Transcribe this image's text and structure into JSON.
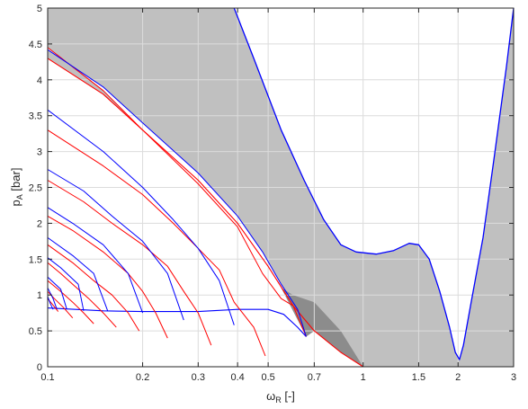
{
  "chart_data": {
    "type": "area",
    "xlabel": {
      "main": "ω",
      "sub": "R",
      "rest": " [-]"
    },
    "ylabel": {
      "main": "p",
      "sub": "A",
      "rest": " [bar]"
    },
    "x_scale": "log",
    "xlim": [
      0.1,
      3
    ],
    "ylim": [
      0,
      5
    ],
    "x_ticks": [
      {
        "value": 0.1,
        "label": "0.1"
      },
      {
        "value": 0.2,
        "label": "0.2"
      },
      {
        "value": 0.3,
        "label": "0.3"
      },
      {
        "value": 0.4,
        "label": "0.4"
      },
      {
        "value": 0.5,
        "label": "0.5"
      },
      {
        "value": 0.7,
        "label": "0.7"
      },
      {
        "value": 1,
        "label": "1"
      },
      {
        "value": 1.5,
        "label": "1.5"
      },
      {
        "value": 2,
        "label": "2"
      },
      {
        "value": 3,
        "label": "3"
      }
    ],
    "y_ticks": [
      {
        "value": 0,
        "label": "0"
      },
      {
        "value": 0.5,
        "label": "0.5"
      },
      {
        "value": 1,
        "label": "1"
      },
      {
        "value": 1.5,
        "label": "1.5"
      },
      {
        "value": 2,
        "label": "2"
      },
      {
        "value": 2.5,
        "label": "2.5"
      },
      {
        "value": 3,
        "label": "3"
      },
      {
        "value": 3.5,
        "label": "3.5"
      },
      {
        "value": 4,
        "label": "4"
      },
      {
        "value": 4.5,
        "label": "4.5"
      },
      {
        "value": 5,
        "label": "5"
      }
    ],
    "grid": true,
    "colors": {
      "region_light": "#c0c0c0",
      "region_dark": "#8c8c8c",
      "blue_boundary": "#0000ff",
      "red_boundary": "#ff0000",
      "grid": "#dcdcdc",
      "axis": "#262626"
    },
    "outer_boundary": [
      [
        0.1,
        5.0
      ],
      [
        0.2,
        5.0
      ],
      [
        0.3,
        5.0
      ],
      [
        0.4,
        5.0
      ],
      [
        0.5,
        5.0
      ],
      [
        0.7,
        5.0
      ],
      [
        1.0,
        5.0
      ],
      [
        1.5,
        5.0
      ],
      [
        2.0,
        5.0
      ],
      [
        2.5,
        5.0
      ],
      [
        3.0,
        5.0
      ]
    ],
    "blue_upper": [
      [
        0.39,
        5.0
      ],
      [
        0.45,
        4.3
      ],
      [
        0.55,
        3.3
      ],
      [
        0.65,
        2.6
      ],
      [
        0.75,
        2.05
      ],
      [
        0.85,
        1.7
      ],
      [
        0.95,
        1.6
      ],
      [
        1.1,
        1.57
      ],
      [
        1.25,
        1.62
      ],
      [
        1.4,
        1.72
      ],
      [
        1.5,
        1.7
      ],
      [
        1.62,
        1.5
      ],
      [
        1.75,
        1.05
      ],
      [
        1.88,
        0.55
      ],
      [
        1.96,
        0.2
      ],
      [
        2.02,
        0.1
      ],
      [
        2.08,
        0.3
      ],
      [
        2.2,
        0.9
      ],
      [
        2.4,
        1.8
      ],
      [
        2.6,
        2.9
      ],
      [
        2.85,
        4.2
      ],
      [
        3.0,
        5.0
      ]
    ],
    "blue_baseline": [
      [
        0.1,
        0.82
      ],
      [
        0.15,
        0.78
      ],
      [
        0.2,
        0.77
      ],
      [
        0.3,
        0.77
      ],
      [
        0.4,
        0.8
      ],
      [
        0.5,
        0.8
      ],
      [
        0.56,
        0.73
      ],
      [
        0.62,
        0.55
      ],
      [
        0.66,
        0.42
      ]
    ],
    "red_lower": [
      [
        0.1,
        4.3
      ],
      [
        0.15,
        3.8
      ],
      [
        0.2,
        3.3
      ],
      [
        0.3,
        2.6
      ],
      [
        0.4,
        2.0
      ],
      [
        0.5,
        1.4
      ],
      [
        0.6,
        0.85
      ],
      [
        0.7,
        0.5
      ],
      [
        0.85,
        0.2
      ],
      [
        1.0,
        0.0
      ]
    ],
    "fan_tongues": [
      {
        "red": [
          [
            0.1,
            4.45
          ],
          [
            0.15,
            3.85
          ],
          [
            0.2,
            3.3
          ],
          [
            0.3,
            2.55
          ],
          [
            0.4,
            1.95
          ],
          [
            0.48,
            1.3
          ],
          [
            0.55,
            0.95
          ],
          [
            0.6,
            0.85
          ],
          [
            0.66,
            0.42
          ]
        ],
        "blue": [
          [
            0.1,
            4.42
          ],
          [
            0.15,
            3.9
          ],
          [
            0.2,
            3.4
          ],
          [
            0.3,
            2.7
          ],
          [
            0.4,
            2.1
          ],
          [
            0.48,
            1.6
          ],
          [
            0.55,
            1.15
          ],
          [
            0.62,
            0.8
          ],
          [
            0.66,
            0.42
          ]
        ],
        "tip": 0.66
      },
      {
        "red": [
          [
            0.1,
            3.3
          ],
          [
            0.15,
            2.8
          ],
          [
            0.2,
            2.4
          ],
          [
            0.25,
            2.0
          ],
          [
            0.3,
            1.65
          ],
          [
            0.35,
            1.35
          ],
          [
            0.39,
            0.9
          ],
          [
            0.45,
            0.55
          ],
          [
            0.49,
            0.15
          ]
        ],
        "blue": [
          [
            0.1,
            3.58
          ],
          [
            0.15,
            3.0
          ],
          [
            0.2,
            2.5
          ],
          [
            0.25,
            2.05
          ],
          [
            0.3,
            1.65
          ],
          [
            0.35,
            1.2
          ],
          [
            0.39,
            0.58
          ]
        ],
        "tip": 0.39
      },
      {
        "red": [
          [
            0.1,
            2.6
          ],
          [
            0.13,
            2.3
          ],
          [
            0.16,
            2.0
          ],
          [
            0.2,
            1.7
          ],
          [
            0.24,
            1.4
          ],
          [
            0.27,
            1.05
          ],
          [
            0.3,
            0.75
          ],
          [
            0.33,
            0.3
          ]
        ],
        "blue": [
          [
            0.1,
            2.75
          ],
          [
            0.13,
            2.45
          ],
          [
            0.16,
            2.1
          ],
          [
            0.2,
            1.75
          ],
          [
            0.24,
            1.3
          ],
          [
            0.27,
            0.65
          ]
        ],
        "tip": 0.27
      },
      {
        "red": [
          [
            0.1,
            2.1
          ],
          [
            0.12,
            1.9
          ],
          [
            0.15,
            1.6
          ],
          [
            0.18,
            1.3
          ],
          [
            0.2,
            1.05
          ],
          [
            0.22,
            0.75
          ],
          [
            0.24,
            0.4
          ]
        ],
        "blue": [
          [
            0.1,
            2.22
          ],
          [
            0.12,
            2.0
          ],
          [
            0.15,
            1.7
          ],
          [
            0.18,
            1.3
          ],
          [
            0.2,
            0.75
          ]
        ],
        "tip": 0.2
      },
      {
        "red": [
          [
            0.1,
            1.7
          ],
          [
            0.12,
            1.45
          ],
          [
            0.14,
            1.2
          ],
          [
            0.16,
            1.0
          ],
          [
            0.18,
            0.75
          ],
          [
            0.195,
            0.5
          ]
        ],
        "blue": [
          [
            0.1,
            1.8
          ],
          [
            0.12,
            1.55
          ],
          [
            0.14,
            1.3
          ],
          [
            0.155,
            0.78
          ]
        ],
        "tip": 0.155
      },
      {
        "red": [
          [
            0.1,
            1.45
          ],
          [
            0.11,
            1.3
          ],
          [
            0.12,
            1.15
          ],
          [
            0.135,
            0.95
          ],
          [
            0.15,
            0.75
          ],
          [
            0.165,
            0.55
          ]
        ],
        "blue": [
          [
            0.1,
            1.52
          ],
          [
            0.11,
            1.38
          ],
          [
            0.125,
            1.15
          ],
          [
            0.13,
            0.78
          ]
        ],
        "tip": 0.13
      },
      {
        "red": [
          [
            0.1,
            1.2
          ],
          [
            0.11,
            1.05
          ],
          [
            0.12,
            0.9
          ],
          [
            0.13,
            0.75
          ],
          [
            0.14,
            0.6
          ]
        ],
        "blue": [
          [
            0.1,
            1.25
          ],
          [
            0.11,
            1.08
          ],
          [
            0.115,
            0.8
          ]
        ],
        "tip": 0.115
      },
      {
        "red": [
          [
            0.1,
            1.05
          ],
          [
            0.105,
            0.95
          ],
          [
            0.112,
            0.83
          ],
          [
            0.12,
            0.68
          ]
        ],
        "blue": [
          [
            0.1,
            1.1
          ],
          [
            0.104,
            0.95
          ],
          [
            0.107,
            0.8
          ]
        ],
        "tip": 0.107
      },
      {
        "red": [
          [
            0.1,
            0.95
          ],
          [
            0.104,
            0.86
          ],
          [
            0.108,
            0.77
          ]
        ],
        "blue": [
          [
            0.1,
            0.98
          ],
          [
            0.102,
            0.88
          ],
          [
            0.104,
            0.8
          ]
        ],
        "tip": 0.104
      }
    ],
    "dark_region": [
      [
        0.55,
        1.1
      ],
      [
        0.66,
        0.42
      ],
      [
        0.7,
        0.5
      ],
      [
        0.85,
        0.2
      ],
      [
        1.0,
        0.0
      ],
      [
        0.85,
        0.5
      ],
      [
        0.7,
        0.9
      ],
      [
        0.6,
        1.0
      ]
    ]
  }
}
